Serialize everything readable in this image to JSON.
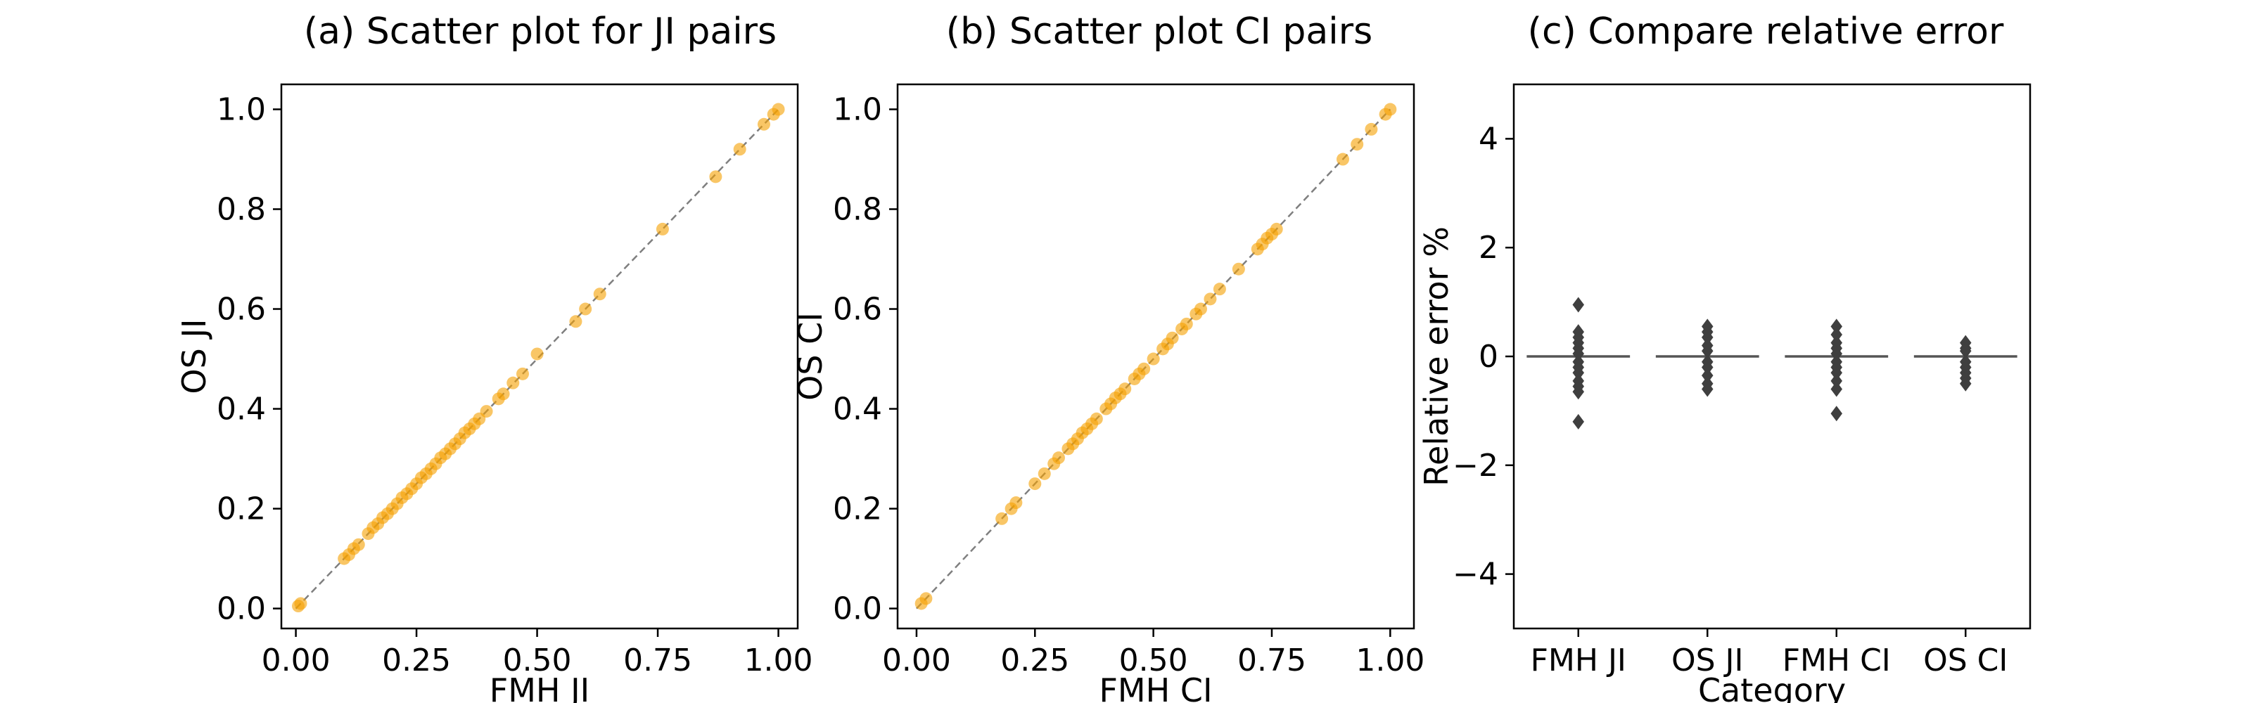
{
  "chart_data": [
    {
      "type": "scatter",
      "title": "(a) Scatter plot for JI pairs",
      "xlabel": "FMH JI",
      "ylabel": "OS JI",
      "xlim": [
        -0.03,
        1.04
      ],
      "ylim": [
        -0.04,
        1.05
      ],
      "xticks": [
        "0.00",
        "0.25",
        "0.50",
        "0.75",
        "1.00"
      ],
      "yticks": [
        "0.0",
        "0.2",
        "0.4",
        "0.6",
        "0.8",
        "1.0"
      ],
      "grid": false,
      "reference_line": "y = x (dashed gray)",
      "marker_color": "#f5a000",
      "points": [
        [
          0.005,
          0.005
        ],
        [
          0.01,
          0.01
        ],
        [
          0.1,
          0.1
        ],
        [
          0.11,
          0.108
        ],
        [
          0.12,
          0.12
        ],
        [
          0.13,
          0.128
        ],
        [
          0.15,
          0.15
        ],
        [
          0.16,
          0.162
        ],
        [
          0.17,
          0.17
        ],
        [
          0.18,
          0.182
        ],
        [
          0.19,
          0.19
        ],
        [
          0.2,
          0.2
        ],
        [
          0.21,
          0.21
        ],
        [
          0.22,
          0.222
        ],
        [
          0.23,
          0.23
        ],
        [
          0.24,
          0.24
        ],
        [
          0.25,
          0.25
        ],
        [
          0.26,
          0.262
        ],
        [
          0.27,
          0.27
        ],
        [
          0.28,
          0.28
        ],
        [
          0.29,
          0.29
        ],
        [
          0.3,
          0.302
        ],
        [
          0.31,
          0.31
        ],
        [
          0.32,
          0.32
        ],
        [
          0.33,
          0.33
        ],
        [
          0.34,
          0.34
        ],
        [
          0.35,
          0.352
        ],
        [
          0.36,
          0.36
        ],
        [
          0.37,
          0.37
        ],
        [
          0.38,
          0.38
        ],
        [
          0.395,
          0.395
        ],
        [
          0.42,
          0.42
        ],
        [
          0.43,
          0.43
        ],
        [
          0.45,
          0.452
        ],
        [
          0.47,
          0.47
        ],
        [
          0.5,
          0.51
        ],
        [
          0.58,
          0.575
        ],
        [
          0.6,
          0.6
        ],
        [
          0.63,
          0.63
        ],
        [
          0.76,
          0.76
        ],
        [
          0.87,
          0.865
        ],
        [
          0.92,
          0.92
        ],
        [
          0.97,
          0.97
        ],
        [
          0.99,
          0.99
        ],
        [
          1.0,
          1.0
        ]
      ]
    },
    {
      "type": "scatter",
      "title": "(b) Scatter plot CI pairs",
      "xlabel": "FMH CI",
      "ylabel": "OS CI",
      "xlim": [
        -0.04,
        1.05
      ],
      "ylim": [
        -0.04,
        1.05
      ],
      "xticks": [
        "0.00",
        "0.25",
        "0.50",
        "0.75",
        "1.00"
      ],
      "yticks": [
        "0.0",
        "0.2",
        "0.4",
        "0.6",
        "0.8",
        "1.0"
      ],
      "grid": false,
      "reference_line": "y = x (dashed gray)",
      "marker_color": "#f5a000",
      "points": [
        [
          0.01,
          0.01
        ],
        [
          0.02,
          0.02
        ],
        [
          0.18,
          0.18
        ],
        [
          0.2,
          0.2
        ],
        [
          0.21,
          0.212
        ],
        [
          0.25,
          0.25
        ],
        [
          0.27,
          0.27
        ],
        [
          0.29,
          0.29
        ],
        [
          0.3,
          0.302
        ],
        [
          0.32,
          0.32
        ],
        [
          0.33,
          0.33
        ],
        [
          0.34,
          0.34
        ],
        [
          0.35,
          0.352
        ],
        [
          0.36,
          0.36
        ],
        [
          0.37,
          0.37
        ],
        [
          0.38,
          0.38
        ],
        [
          0.4,
          0.4
        ],
        [
          0.41,
          0.41
        ],
        [
          0.42,
          0.422
        ],
        [
          0.43,
          0.43
        ],
        [
          0.44,
          0.44
        ],
        [
          0.46,
          0.46
        ],
        [
          0.47,
          0.47
        ],
        [
          0.48,
          0.48
        ],
        [
          0.5,
          0.5
        ],
        [
          0.52,
          0.52
        ],
        [
          0.53,
          0.53
        ],
        [
          0.54,
          0.542
        ],
        [
          0.56,
          0.56
        ],
        [
          0.57,
          0.57
        ],
        [
          0.59,
          0.59
        ],
        [
          0.6,
          0.6
        ],
        [
          0.62,
          0.62
        ],
        [
          0.64,
          0.64
        ],
        [
          0.68,
          0.68
        ],
        [
          0.72,
          0.72
        ],
        [
          0.73,
          0.73
        ],
        [
          0.74,
          0.742
        ],
        [
          0.75,
          0.75
        ],
        [
          0.76,
          0.76
        ],
        [
          0.9,
          0.9
        ],
        [
          0.93,
          0.93
        ],
        [
          0.96,
          0.96
        ],
        [
          0.99,
          0.99
        ],
        [
          1.0,
          1.0
        ]
      ]
    },
    {
      "type": "box",
      "title": "(c) Compare relative error",
      "xlabel": "Category",
      "ylabel": "Relative error %",
      "ylim": [
        -5,
        5
      ],
      "yticks": [
        "−4",
        "−2",
        "0",
        "2",
        "4"
      ],
      "categories": [
        "FMH JI",
        "OS JI",
        "FMH CI",
        "OS CI"
      ],
      "median": [
        0,
        0,
        0,
        0
      ],
      "box_color": "#555555",
      "outliers": [
        [
          0.95,
          0.45,
          0.35,
          0.25,
          0.15,
          0.05,
          -0.1,
          -0.2,
          -0.3,
          -0.45,
          -0.55,
          -0.65,
          -1.2
        ],
        [
          0.55,
          0.45,
          0.35,
          0.2,
          0.1,
          -0.1,
          -0.2,
          -0.35,
          -0.5,
          -0.6
        ],
        [
          0.55,
          0.4,
          0.25,
          0.15,
          0.05,
          -0.1,
          -0.2,
          -0.3,
          -0.45,
          -0.6,
          -1.05
        ],
        [
          0.25,
          0.15,
          0.1,
          -0.1,
          -0.2,
          -0.3,
          -0.4,
          -0.5
        ]
      ]
    }
  ]
}
